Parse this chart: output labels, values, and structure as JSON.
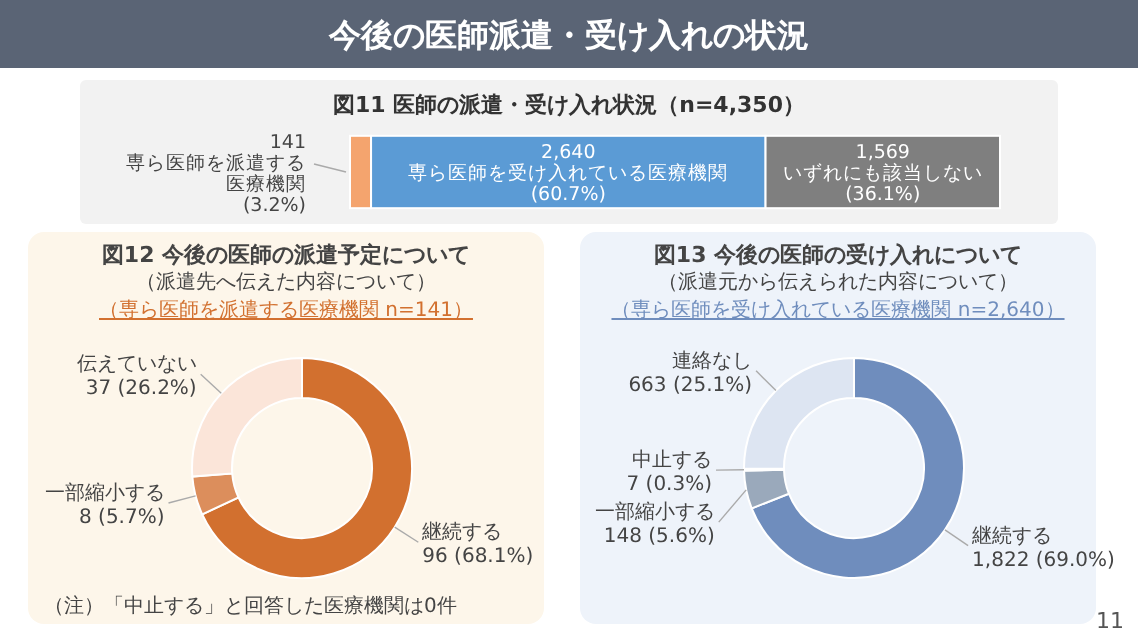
{
  "chart_data": [
    {
      "type": "other",
      "title": "今後の医師派遣・受け入れの状況",
      "annotations": [
        "11"
      ]
    },
    {
      "type": "bar",
      "orientation": "horizontal",
      "stacked": true,
      "title": "図11  医師の派遣・受け入れ状況（n=4,350）",
      "categories": [
        null
      ],
      "annotations": [
        "(3.2%)",
        "(60.7%)",
        "(36.1%)"
      ],
      "series": [
        {
          "name": "専ら医師を派遣する医療機関",
          "color": "#f4a46e",
          "values": [
            141
          ],
          "value_labels": [
            "141"
          ]
        },
        {
          "name": "専ら医師を受け入れている医療機関",
          "color": "#5b9bd5",
          "values": [
            2640
          ],
          "value_labels": [
            "2,640"
          ]
        },
        {
          "name": "いずれにも該当しない",
          "color": "#7f7f7f",
          "values": [
            1569
          ],
          "value_labels": [
            "1,569"
          ]
        }
      ]
    },
    {
      "type": "donut",
      "title": "図12  今後の医師の派遣予定について",
      "subtitle": "（派遣先へ伝えた内容について）",
      "annotations": [
        "（専ら医師を派遣する医療機関  n=141）",
        "（注）「中止する」と回答した医療機関は0件"
      ],
      "categories": [
        "継続する",
        "一部縮小する",
        "伝えていない"
      ],
      "values": [
        96,
        8,
        37
      ],
      "colors": [
        "#d2702f",
        "#dc8e5c",
        "#fbe5d9"
      ],
      "value_labels": [
        "96 (68.1%)",
        "8 (5.7%)",
        "37 (26.2%)"
      ]
    },
    {
      "type": "donut",
      "title": "図13  今後の医師の受け入れについて",
      "subtitle": "（派遣元から伝えられた内容について）",
      "annotations": [
        "（専ら医師を受け入れている医療機関  n=2,640）"
      ],
      "categories": [
        "継続する",
        "一部縮小する",
        "中止する",
        "連絡なし"
      ],
      "values": [
        1822,
        148,
        7,
        663
      ],
      "colors": [
        "#6f8dbd",
        "#9aa9bb",
        "#c4cfe0",
        "#dde5f2"
      ],
      "value_labels": [
        "1,822 (69.0%)",
        "148 (5.6%)",
        "7 (0.3%)",
        "663 (25.1%)"
      ]
    }
  ]
}
